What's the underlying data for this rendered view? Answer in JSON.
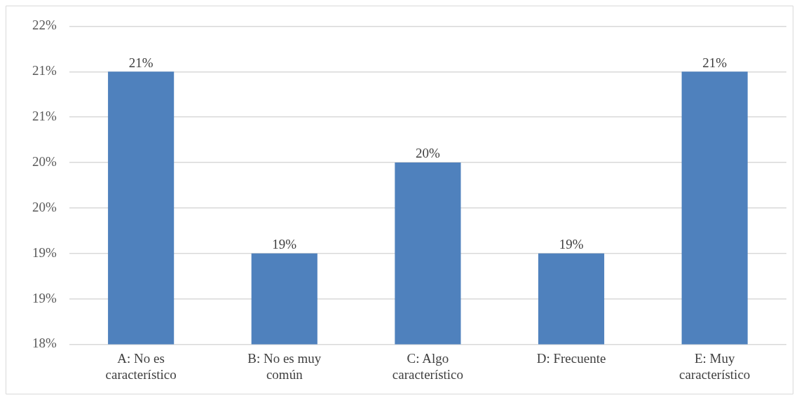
{
  "chart_data": {
    "type": "bar",
    "categories": [
      "A: No es característico",
      "B: No es muy común",
      "C: Algo característico",
      "D: Frecuente",
      "E: Muy característico"
    ],
    "values": [
      21,
      19,
      20,
      19,
      21
    ],
    "value_labels": [
      "21%",
      "19%",
      "20%",
      "19%",
      "21%"
    ],
    "color": "#4f81bd",
    "ylim": [
      18,
      21.5
    ],
    "yticks": [
      {
        "value": 18,
        "label": "18%"
      },
      {
        "value": 18.5,
        "label": "19%"
      },
      {
        "value": 19,
        "label": "19%"
      },
      {
        "value": 19.5,
        "label": "20%"
      },
      {
        "value": 20,
        "label": "20%"
      },
      {
        "value": 20.5,
        "label": "21%"
      },
      {
        "value": 21,
        "label": "21%"
      },
      {
        "value": 21.5,
        "label": "22%"
      }
    ],
    "grid": "y",
    "legend": false
  }
}
